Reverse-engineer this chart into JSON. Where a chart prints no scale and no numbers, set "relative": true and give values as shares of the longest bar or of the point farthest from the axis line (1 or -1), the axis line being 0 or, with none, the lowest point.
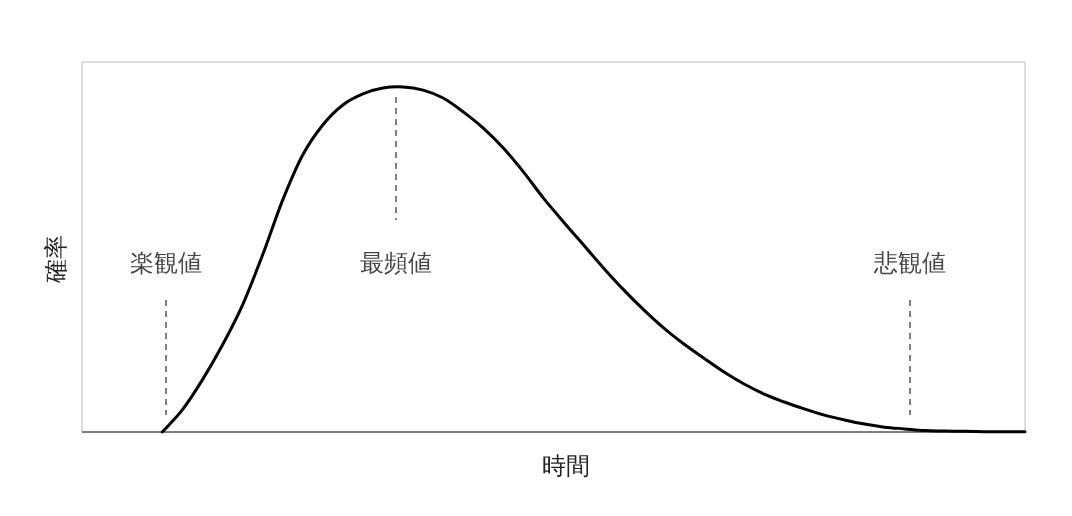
{
  "chart_data": {
    "type": "line",
    "relative": true,
    "xlabel": "時間",
    "ylabel": "確率",
    "categories": [
      null,
      null,
      null,
      null,
      null,
      null,
      null,
      null,
      null,
      null,
      null,
      null,
      null,
      null,
      null,
      null,
      null,
      null,
      null,
      null,
      null,
      null,
      null,
      null,
      null,
      null,
      null,
      null,
      null,
      null,
      null,
      null,
      null,
      null,
      null,
      null,
      null,
      null,
      null,
      null,
      null,
      null,
      null,
      null,
      null,
      null,
      null,
      null
    ],
    "series": [
      {
        "color": "#000000",
        "values": [
          null,
          null,
          null,
          null,
          0,
          0.064,
          0.151,
          0.252,
          0.368,
          0.513,
          0.672,
          0.803,
          0.89,
          0.948,
          0.98,
          0.997,
          1,
          0.991,
          0.968,
          0.928,
          0.881,
          0.823,
          0.754,
          0.678,
          0.609,
          0.542,
          0.475,
          0.412,
          0.354,
          0.301,
          0.255,
          0.214,
          0.174,
          0.139,
          0.11,
          0.087,
          0.067,
          0.049,
          0.035,
          0.023,
          0.014,
          0.009,
          0.004,
          0.003,
          0.002,
          0.001,
          0.001,
          0.001
        ]
      }
    ],
    "annotations": [
      "楽観値",
      "最頻値",
      "悲観値"
    ]
  }
}
